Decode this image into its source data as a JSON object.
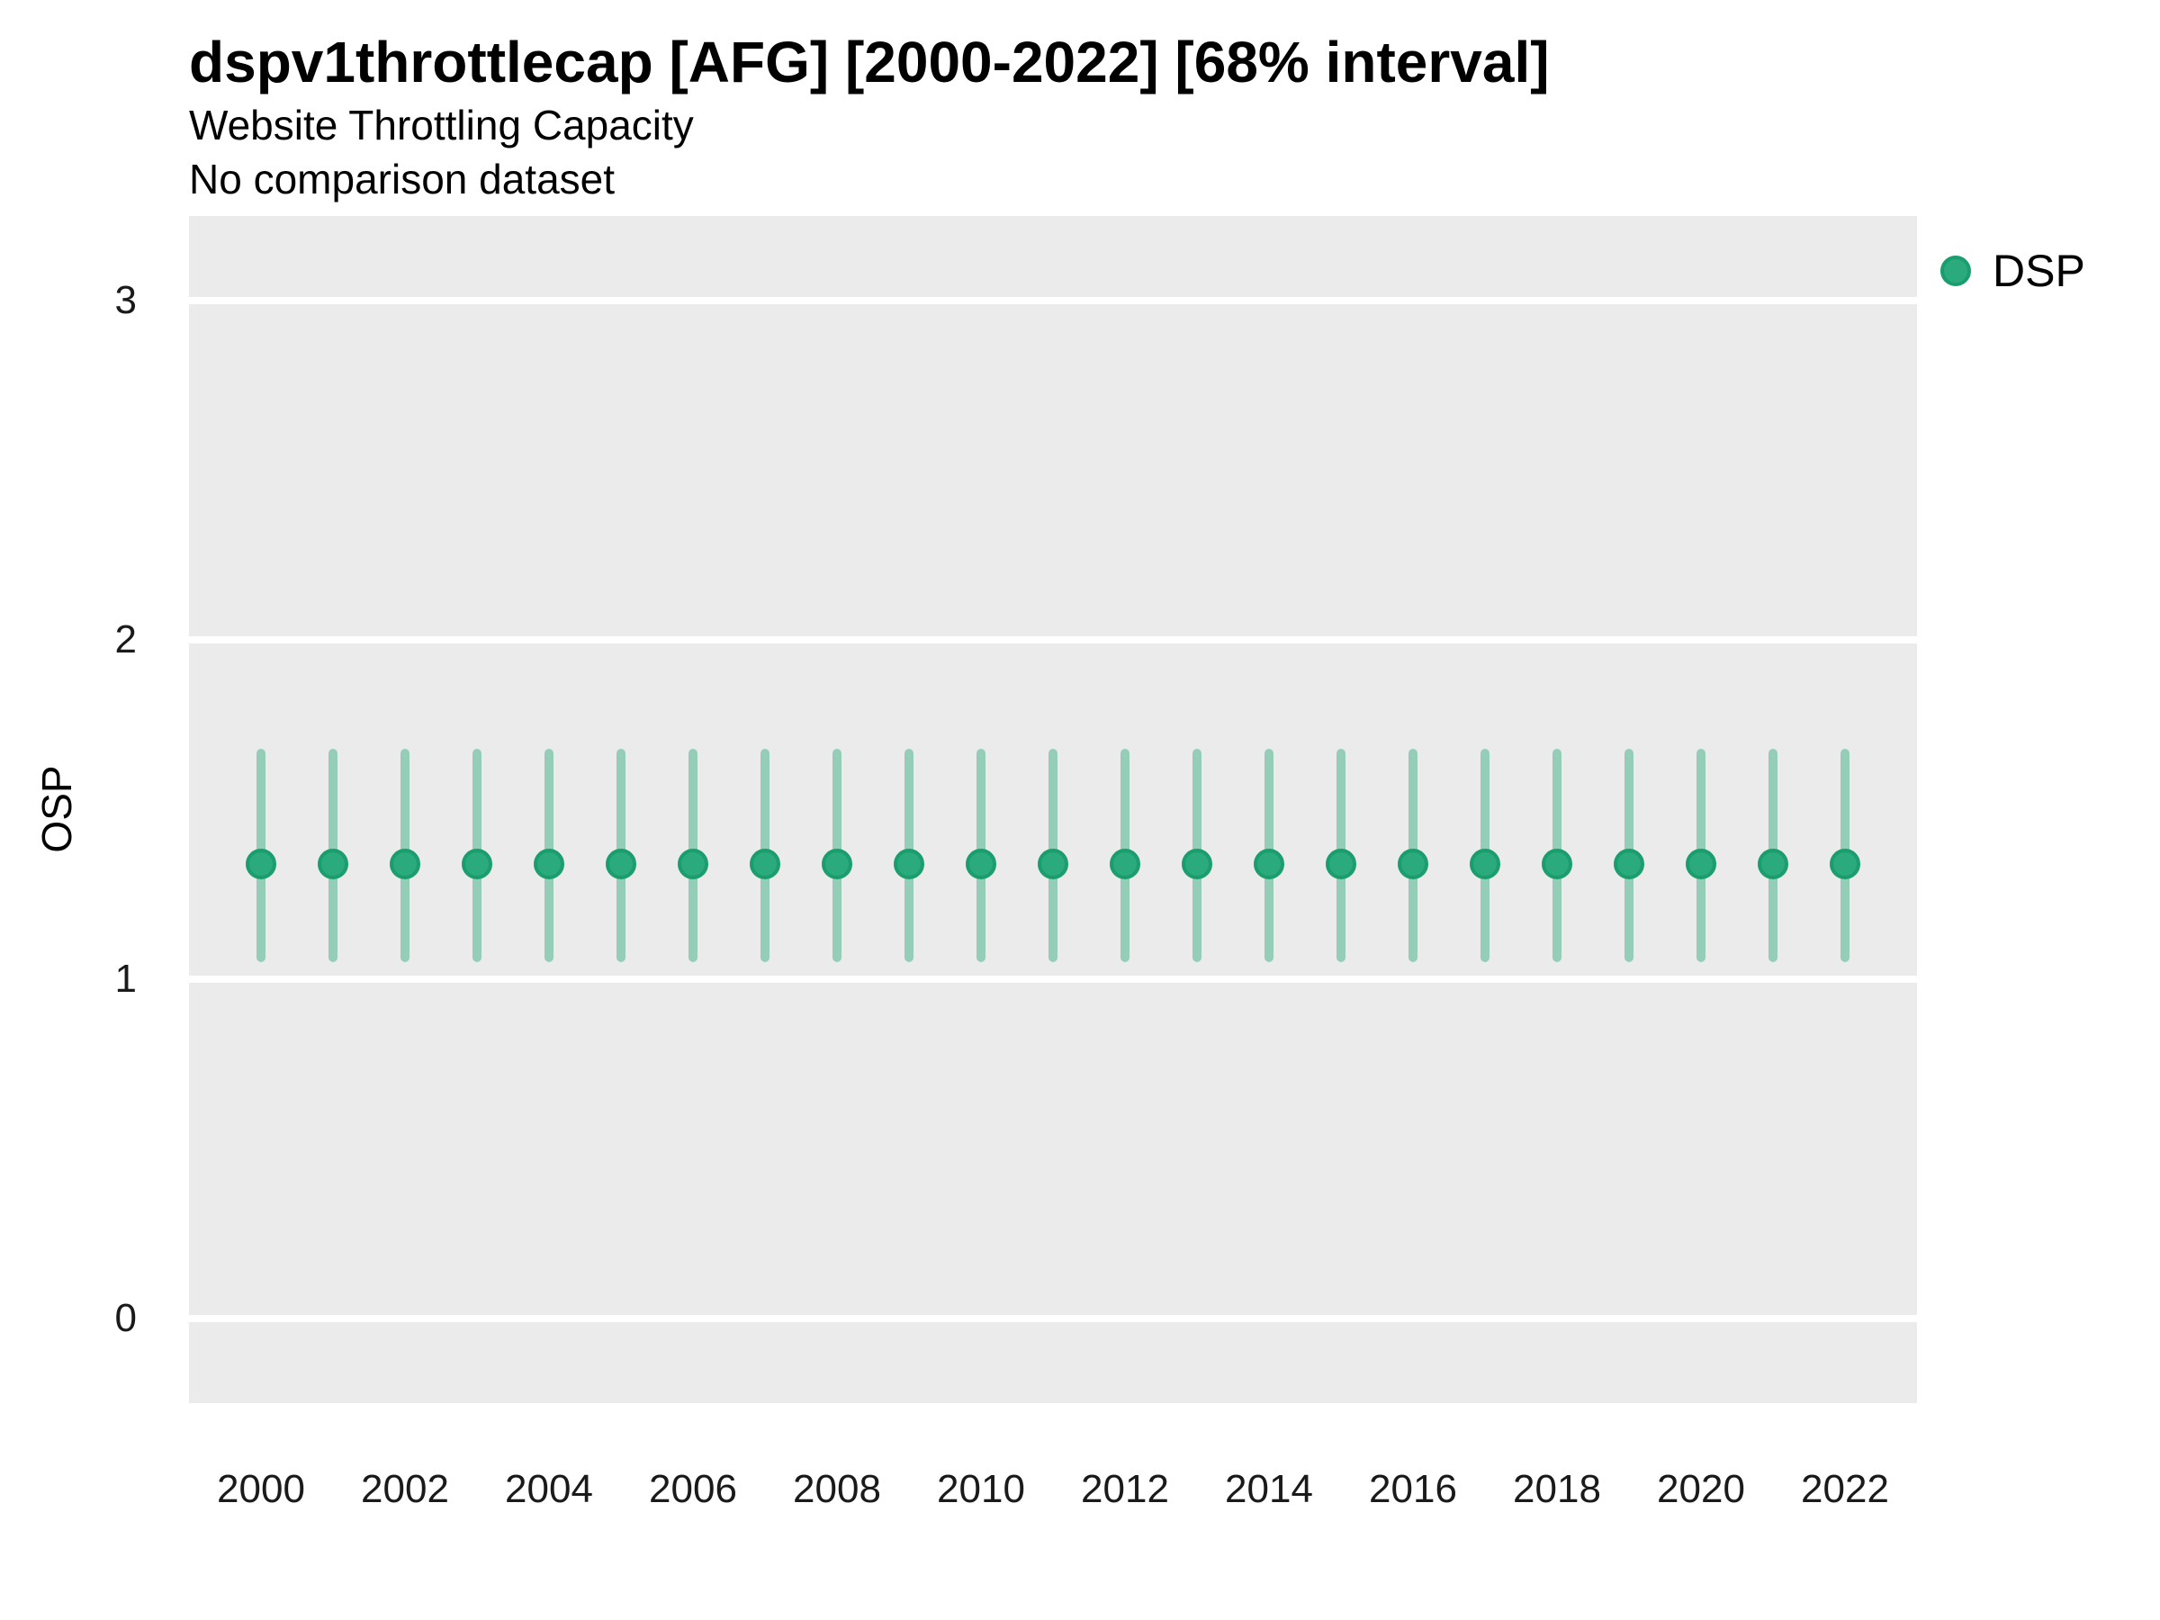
{
  "header": {
    "title": "dspv1throttlecap [AFG] [2000-2022] [68% interval]",
    "subtitle": "Website Throttling Capacity",
    "comparison_note": "No comparison dataset"
  },
  "legend": {
    "items": [
      {
        "label": "DSP",
        "marker_color": "#2BAA7D",
        "marker_edge_color": "#1A9E6D"
      }
    ]
  },
  "chart_data": {
    "type": "scatter",
    "title": "dspv1throttlecap [AFG] [2000-2022] [68% interval]",
    "subtitle": "Website Throttling Capacity",
    "note": "No comparison dataset",
    "interval_label": "68% interval",
    "x": [
      2000,
      2001,
      2002,
      2003,
      2004,
      2005,
      2006,
      2007,
      2008,
      2009,
      2010,
      2011,
      2012,
      2013,
      2014,
      2015,
      2016,
      2017,
      2018,
      2019,
      2020,
      2021,
      2022
    ],
    "series": [
      {
        "name": "DSP",
        "center": [
          1.34,
          1.34,
          1.34,
          1.34,
          1.34,
          1.34,
          1.34,
          1.34,
          1.34,
          1.34,
          1.34,
          1.34,
          1.34,
          1.34,
          1.34,
          1.34,
          1.34,
          1.34,
          1.34,
          1.34,
          1.34,
          1.34,
          1.34
        ],
        "lower": [
          1.05,
          1.05,
          1.05,
          1.05,
          1.05,
          1.05,
          1.05,
          1.05,
          1.05,
          1.05,
          1.05,
          1.05,
          1.05,
          1.05,
          1.05,
          1.05,
          1.05,
          1.05,
          1.05,
          1.05,
          1.05,
          1.05,
          1.05
        ],
        "upper": [
          1.68,
          1.68,
          1.68,
          1.68,
          1.68,
          1.68,
          1.68,
          1.68,
          1.68,
          1.68,
          1.68,
          1.68,
          1.68,
          1.68,
          1.68,
          1.68,
          1.68,
          1.68,
          1.68,
          1.68,
          1.68,
          1.68,
          1.68
        ]
      }
    ],
    "xlabel": "",
    "ylabel": "OSP",
    "ylim": [
      -0.25,
      3.25
    ],
    "yticks": [
      0,
      1,
      2,
      3
    ],
    "xticks": [
      2000,
      2002,
      2004,
      2006,
      2008,
      2010,
      2012,
      2014,
      2016,
      2018,
      2020,
      2022
    ],
    "grid": "horizontal-major-only",
    "legend_position": "right-top",
    "panel_bg": "#EBEBEB",
    "grid_color": "#FFFFFF",
    "point_color": "#2BAA7D",
    "point_edge_color": "#1A9E6D",
    "interval_color": "#2BAA7D",
    "interval_opacity": 0.45
  }
}
